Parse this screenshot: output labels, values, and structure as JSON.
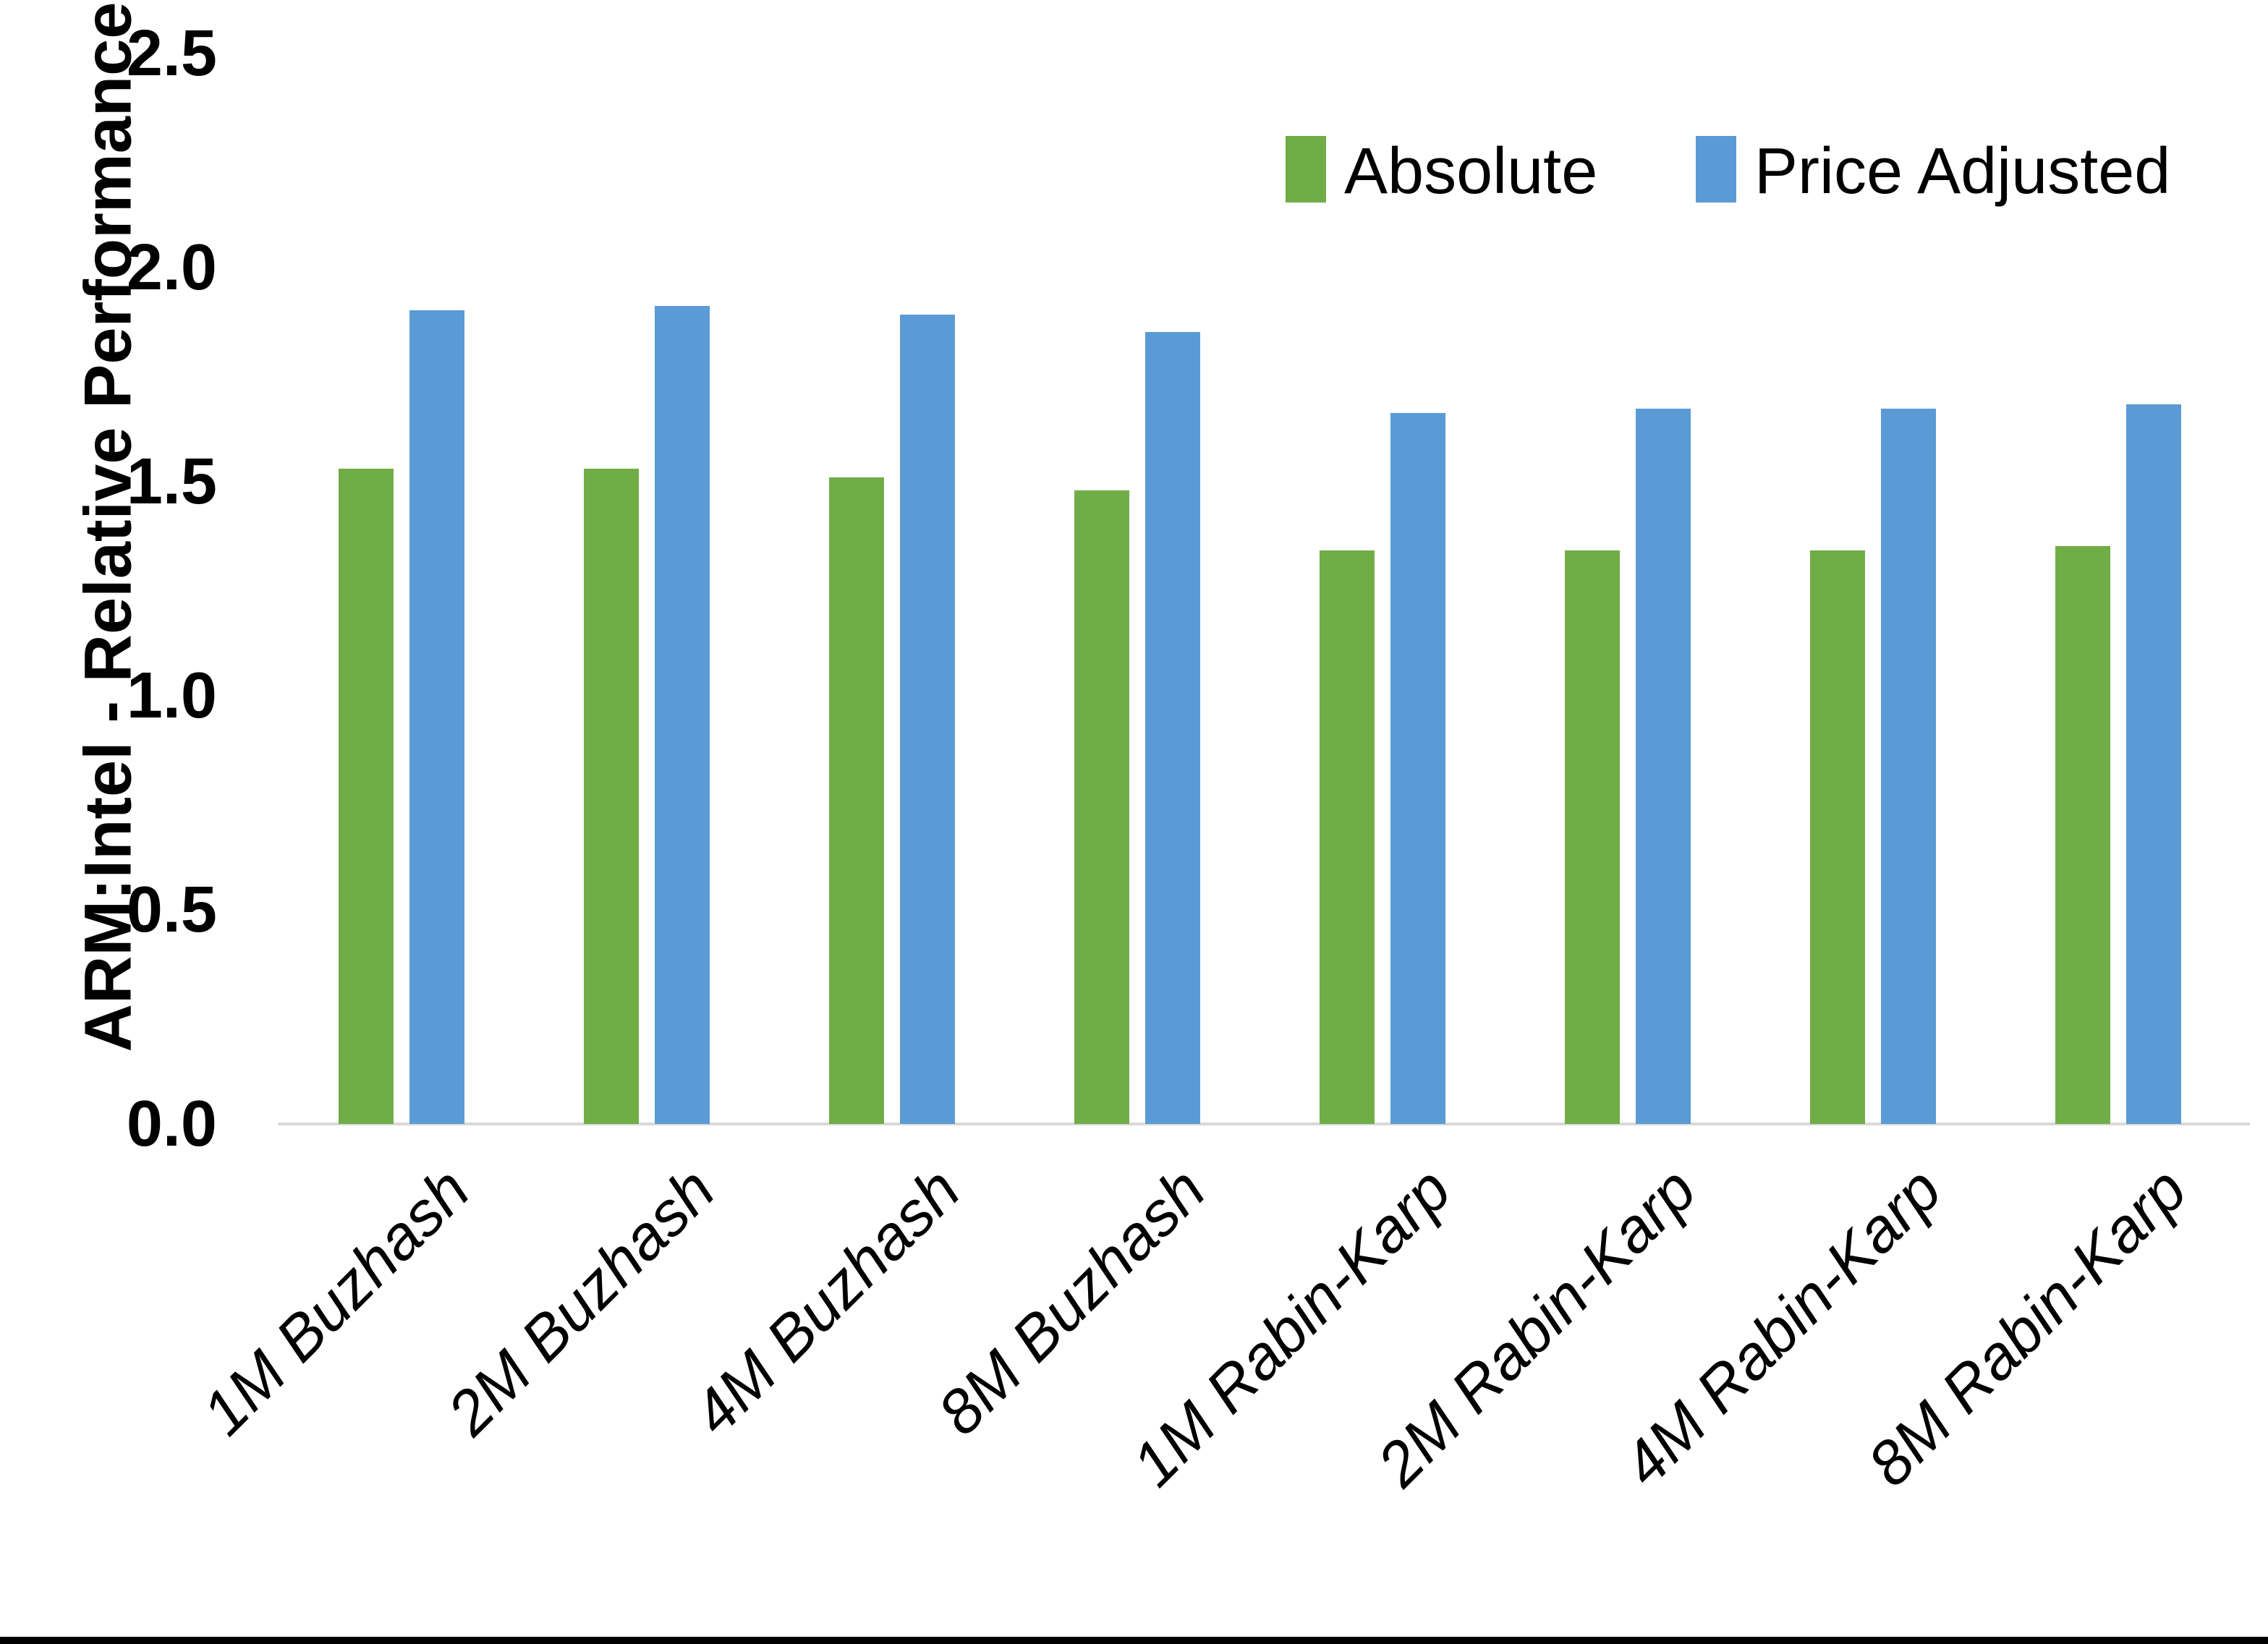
{
  "chart_data": {
    "type": "bar",
    "title": "",
    "ylabel": "ARM:Intel - Relative Performance",
    "xlabel": "",
    "ylim": [
      0,
      2.5
    ],
    "ytick_labels": [
      "0.0",
      "0.5",
      "1.0",
      "1.5",
      "2.0",
      "2.5"
    ],
    "yticks": [
      0.0,
      0.5,
      1.0,
      1.5,
      2.0,
      2.5
    ],
    "grid": false,
    "legend_position": "top-right",
    "categories": [
      "1M Buzhash",
      "2M Buzhash",
      "4M Buzhash",
      "8M Buzhash",
      "1M Rabin-Karp",
      "2M Rabin-Karp",
      "4M Rabin-Karp",
      "8M Rabin-Karp"
    ],
    "series": [
      {
        "name": "Absolute",
        "color": "#70AD47",
        "values": [
          1.53,
          1.53,
          1.51,
          1.48,
          1.34,
          1.34,
          1.34,
          1.35
        ]
      },
      {
        "name": "Price Adjusted",
        "color": "#5B9BD5",
        "values": [
          1.9,
          1.91,
          1.89,
          1.85,
          1.66,
          1.67,
          1.67,
          1.68
        ]
      }
    ]
  },
  "colors": {
    "axis_line": "#d9d9d9",
    "text": "#000000",
    "bottom_border": "#000000"
  }
}
